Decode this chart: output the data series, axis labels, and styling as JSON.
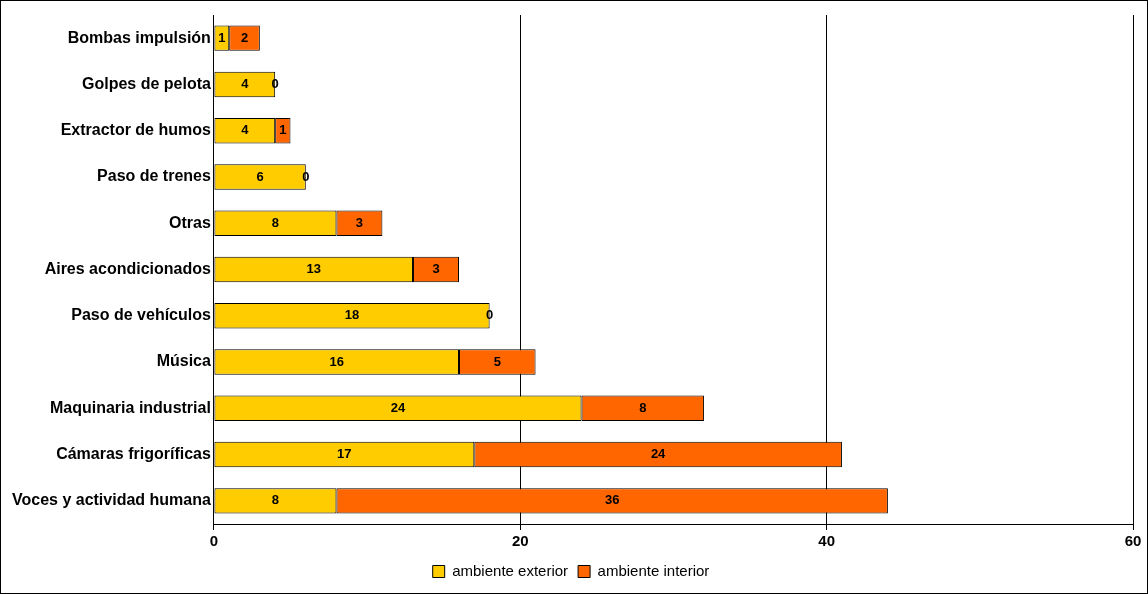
{
  "chart_data": {
    "type": "bar",
    "orientation": "horizontal",
    "stacked": true,
    "categories": [
      "Bombas impulsión",
      "Golpes de pelota",
      "Extractor de humos",
      "Paso de trenes",
      "Otras",
      "Aires acondicionados",
      "Paso de vehículos",
      "Música",
      "Maquinaria industrial",
      "Cámaras frigoríficas",
      "Voces y actividad humana"
    ],
    "series": [
      {
        "name": "ambiente exterior",
        "color": "#ffcc00",
        "values": [
          1,
          4,
          4,
          6,
          8,
          13,
          18,
          16,
          24,
          17,
          8
        ]
      },
      {
        "name": "ambiente interior",
        "color": "#ff6600",
        "values": [
          2,
          0,
          1,
          0,
          3,
          3,
          0,
          5,
          8,
          24,
          36
        ]
      }
    ],
    "xlim": [
      0,
      60
    ],
    "xticks": [
      0,
      20,
      40,
      60
    ],
    "grid": "x",
    "legend": "bottom",
    "data_labels": true
  }
}
